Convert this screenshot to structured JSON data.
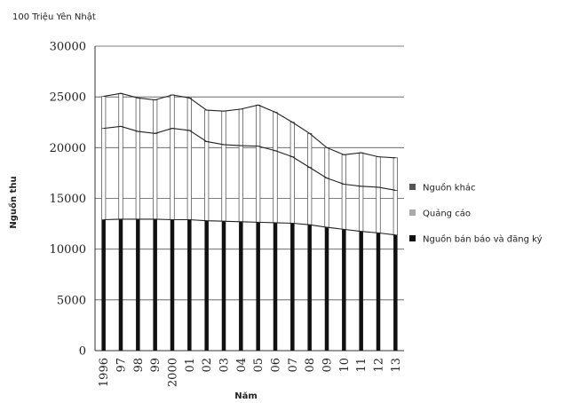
{
  "chart_data": {
    "type": "bar",
    "stacked": true,
    "unit_label": "100 Triệu Yên Nhật",
    "ylabel": "Nguồn thu",
    "xlabel": "Năm",
    "ylim": [
      0,
      30000
    ],
    "yticks": [
      0,
      5000,
      10000,
      15000,
      20000,
      25000,
      30000
    ],
    "categories": [
      "1996",
      "97",
      "98",
      "99",
      "2000",
      "01",
      "02",
      "03",
      "04",
      "05",
      "06",
      "07",
      "08",
      "09",
      "10",
      "11",
      "12",
      "13"
    ],
    "series": [
      {
        "name": "Nguồn bán báo và đăng ký",
        "color": "#111111",
        "values": [
          12900,
          12950,
          12950,
          12950,
          12900,
          12900,
          12800,
          12750,
          12700,
          12650,
          12600,
          12550,
          12400,
          12150,
          11950,
          11750,
          11600,
          11400
        ]
      },
      {
        "name": "Quảng cáo",
        "color": "#ffffff",
        "values": [
          9000,
          9150,
          8650,
          8450,
          9000,
          8800,
          7800,
          7550,
          7500,
          7500,
          7100,
          6550,
          5650,
          4850,
          4450,
          4450,
          4500,
          4400
        ]
      },
      {
        "name": "Nguồn khác",
        "color": "#ffffff",
        "values": [
          3150,
          3250,
          3300,
          3300,
          3300,
          3200,
          3100,
          3300,
          3600,
          4050,
          3800,
          3400,
          3350,
          3000,
          2900,
          3300,
          3000,
          3200
        ]
      }
    ],
    "totals": [
      25050,
      25350,
      24900,
      24700,
      25200,
      24900,
      23700,
      23600,
      23800,
      24200,
      23500,
      22500,
      21400,
      20000,
      19300,
      19500,
      19100,
      19000
    ],
    "legend": [
      {
        "name": "Nguồn khác",
        "swatch": "#555555"
      },
      {
        "name": "Quảng cáo",
        "swatch": "#aaaaaa"
      },
      {
        "name": "Nguồn bán báo và đăng ký",
        "swatch": "#111111"
      }
    ],
    "legend_position": "right",
    "grid": true
  }
}
